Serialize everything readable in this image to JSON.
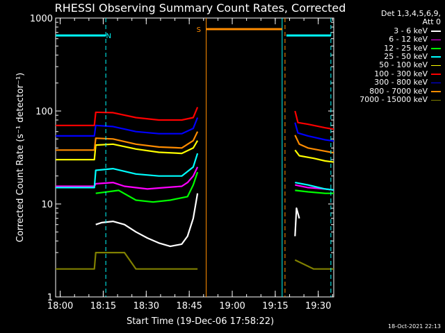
{
  "chart_data": {
    "type": "line",
    "title": "RHESSI Observing Summary Count Rates, Corrected",
    "xlabel": "Start Time (19-Dec-06 17:58:22)",
    "ylabel": "Corrected Count Rate (s⁻¹ detector⁻¹)",
    "yscale": "log",
    "ylim": [
      1,
      1000
    ],
    "xlim_minutes_after_start": [
      0,
      97
    ],
    "x_ticks": [
      {
        "m": 1.6,
        "label": "18:00"
      },
      {
        "m": 16.6,
        "label": "18:15"
      },
      {
        "m": 31.6,
        "label": "18:30"
      },
      {
        "m": 46.6,
        "label": "18:45"
      },
      {
        "m": 61.6,
        "label": "19:00"
      },
      {
        "m": 76.6,
        "label": "19:15"
      },
      {
        "m": 91.6,
        "label": "19:30"
      }
    ],
    "y_ticks": [
      {
        "v": 1,
        "label": "1"
      },
      {
        "v": 10,
        "label": "10"
      },
      {
        "v": 100,
        "label": "100"
      },
      {
        "v": 1000,
        "label": "1000"
      }
    ],
    "legend_header": [
      "Det 1,3,4,5,6,9,",
      "Att 0"
    ],
    "series": [
      {
        "name": "3 - 6 keV",
        "color": "#ffffff",
        "segments": [
          [
            [
              14,
              6
            ],
            [
              16,
              6.3
            ],
            [
              20,
              6.5
            ],
            [
              24,
              6
            ],
            [
              28,
              5
            ],
            [
              32,
              4.3
            ],
            [
              36,
              3.8
            ],
            [
              40,
              3.5
            ],
            [
              44,
              3.7
            ],
            [
              46,
              4.5
            ],
            [
              48,
              7
            ],
            [
              49.5,
              13
            ]
          ],
          [
            [
              83.5,
              4.5
            ],
            [
              84,
              9
            ],
            [
              85,
              7
            ]
          ]
        ]
      },
      {
        "name": "6 - 12 keV",
        "color": "#ff00ff",
        "segments": [
          [
            [
              0,
              15.5
            ],
            [
              13.5,
              15.5
            ],
            [
              14,
              16.5
            ],
            [
              20,
              17
            ],
            [
              24,
              15.5
            ],
            [
              32,
              14.5
            ],
            [
              38,
              15
            ],
            [
              44,
              15.5
            ],
            [
              46,
              17
            ],
            [
              48,
              20
            ],
            [
              49.5,
              25
            ]
          ],
          [
            [
              83.5,
              16
            ],
            [
              88,
              15
            ],
            [
              94,
              14.5
            ],
            [
              98,
              14
            ]
          ]
        ]
      },
      {
        "name": "12 - 25 keV",
        "color": "#00ff00",
        "segments": [
          [
            [
              14,
              13
            ],
            [
              22,
              14
            ],
            [
              28,
              11
            ],
            [
              34,
              10.5
            ],
            [
              40,
              11
            ],
            [
              46,
              12
            ],
            [
              48,
              16
            ],
            [
              49.5,
              22
            ]
          ],
          [
            [
              83.5,
              14
            ],
            [
              88,
              13.5
            ],
            [
              94,
              13
            ],
            [
              98,
              13
            ]
          ]
        ]
      },
      {
        "name": "25 - 50 keV",
        "color": "#00ffff",
        "segments": [
          [
            [
              0,
              15
            ],
            [
              13.5,
              15
            ],
            [
              14,
              23
            ],
            [
              20,
              24
            ],
            [
              28,
              21
            ],
            [
              36,
              20
            ],
            [
              44,
              20
            ],
            [
              48,
              25
            ],
            [
              49.5,
              35
            ]
          ],
          [
            [
              83.5,
              17
            ],
            [
              88,
              16
            ],
            [
              94,
              14.5
            ],
            [
              98,
              14
            ]
          ]
        ]
      },
      {
        "name": "50 - 100 keV",
        "color": "#ffff00",
        "segments": [
          [
            [
              0,
              30
            ],
            [
              13.5,
              30
            ],
            [
              14,
              43
            ],
            [
              20,
              44
            ],
            [
              28,
              39
            ],
            [
              36,
              36
            ],
            [
              44,
              35
            ],
            [
              48,
              40
            ],
            [
              49.5,
              48
            ]
          ],
          [
            [
              83.5,
              38
            ],
            [
              85,
              33
            ],
            [
              90,
              31
            ],
            [
              94,
              29
            ],
            [
              98,
              28
            ]
          ]
        ]
      },
      {
        "name": "100 - 300 keV",
        "color": "#ff0000",
        "segments": [
          [
            [
              0,
              70
            ],
            [
              13.5,
              70
            ],
            [
              14,
              97
            ],
            [
              20,
              96
            ],
            [
              28,
              85
            ],
            [
              36,
              80
            ],
            [
              44,
              80
            ],
            [
              48,
              85
            ],
            [
              49.5,
              110
            ]
          ],
          [
            [
              83.5,
              100
            ],
            [
              84.5,
              75
            ],
            [
              88,
              72
            ],
            [
              94,
              66
            ],
            [
              98,
              63
            ]
          ]
        ]
      },
      {
        "name": "300 - 800 keV",
        "color": "#0000ff",
        "segments": [
          [
            [
              0,
              54
            ],
            [
              13.5,
              54
            ],
            [
              14,
              70
            ],
            [
              20,
              68
            ],
            [
              28,
              60
            ],
            [
              36,
              57
            ],
            [
              44,
              57
            ],
            [
              48,
              65
            ],
            [
              49.5,
              85
            ]
          ],
          [
            [
              83.5,
              75
            ],
            [
              84.5,
              58
            ],
            [
              88,
              54
            ],
            [
              94,
              49
            ],
            [
              98,
              47
            ]
          ]
        ]
      },
      {
        "name": "800 - 7000 keV",
        "color": "#ff8c00",
        "segments": [
          [
            [
              0,
              38
            ],
            [
              13.5,
              38
            ],
            [
              14,
              51
            ],
            [
              20,
              50
            ],
            [
              28,
              44
            ],
            [
              36,
              41
            ],
            [
              44,
              40
            ],
            [
              48,
              48
            ],
            [
              49.5,
              60
            ]
          ],
          [
            [
              83.5,
              55
            ],
            [
              85,
              44
            ],
            [
              88,
              40
            ],
            [
              94,
              37
            ],
            [
              98,
              35
            ]
          ]
        ]
      },
      {
        "name": "7000 - 15000 keV",
        "color": "#808000",
        "segments": [
          [
            [
              0,
              2
            ],
            [
              13.5,
              2
            ],
            [
              14,
              3
            ],
            [
              24,
              3
            ],
            [
              28,
              2
            ],
            [
              40,
              2
            ],
            [
              49.5,
              2
            ]
          ],
          [
            [
              83.5,
              2.5
            ],
            [
              90,
              2
            ],
            [
              98,
              2
            ]
          ]
        ]
      }
    ],
    "annotations": [
      {
        "label": "N",
        "color": "#00ffff",
        "x": 18.5,
        "y": 650
      },
      {
        "label": "S",
        "color": "#ff8c00",
        "x": 49.9,
        "y": 760
      }
    ],
    "state_bars": [
      {
        "color": "#00ffff",
        "y": 650,
        "x0": 0,
        "x1": 17.5
      },
      {
        "color": "#ff8c00",
        "y": 760,
        "x0": 52.5,
        "x1": 79
      },
      {
        "color": "#00ffff",
        "y": 650,
        "x0": 80.5,
        "x1": 96
      }
    ],
    "vlines": [
      {
        "color": "#00ffff",
        "x": 17.5,
        "dashed": true
      },
      {
        "color": "#ff8c00",
        "x": 52.5,
        "dashed": false
      },
      {
        "color": "#00ffff",
        "x": 79,
        "dashed": false
      },
      {
        "color": "#ff8c00",
        "x": 80,
        "dashed": true
      },
      {
        "color": "#00ffff",
        "x": 96,
        "dashed": true
      }
    ]
  },
  "footer_timestamp": "18-Oct-2021 22:13"
}
